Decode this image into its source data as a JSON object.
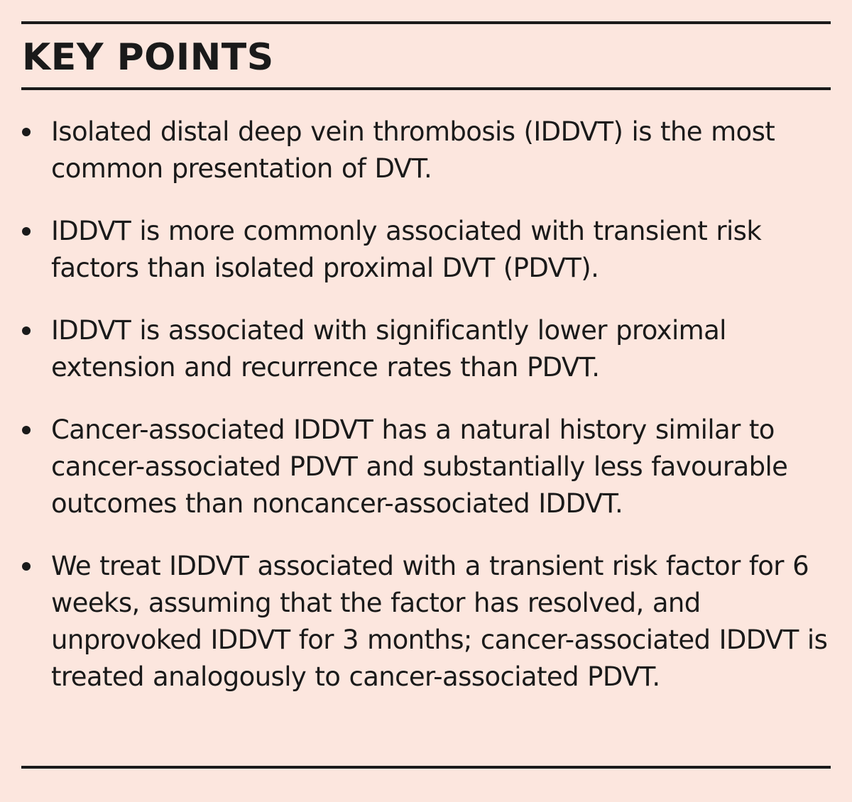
{
  "box": {
    "heading": "KEY POINTS",
    "points": [
      "Isolated distal deep vein thrombosis (IDDVT) is the most common presentation of DVT.",
      "IDDVT is more commonly associated with transient risk factors than isolated proximal DVT (PDVT).",
      "IDDVT is associated with significantly lower proximal extension and recurrence rates than PDVT.",
      "Cancer-associated IDDVT has a natural history similar to cancer-associated PDVT and substantially less favourable outcomes than noncancer-associated IDDVT.",
      "We treat IDDVT associated with a transient risk factor for 6 weeks, assuming that the factor has resolved, and unprovoked IDDVT for 3 months; cancer-associated IDDVT is treated analogously to cancer-associated PDVT."
    ],
    "colors": {
      "background": "#fce6de",
      "text": "#1a1a1a"
    }
  }
}
